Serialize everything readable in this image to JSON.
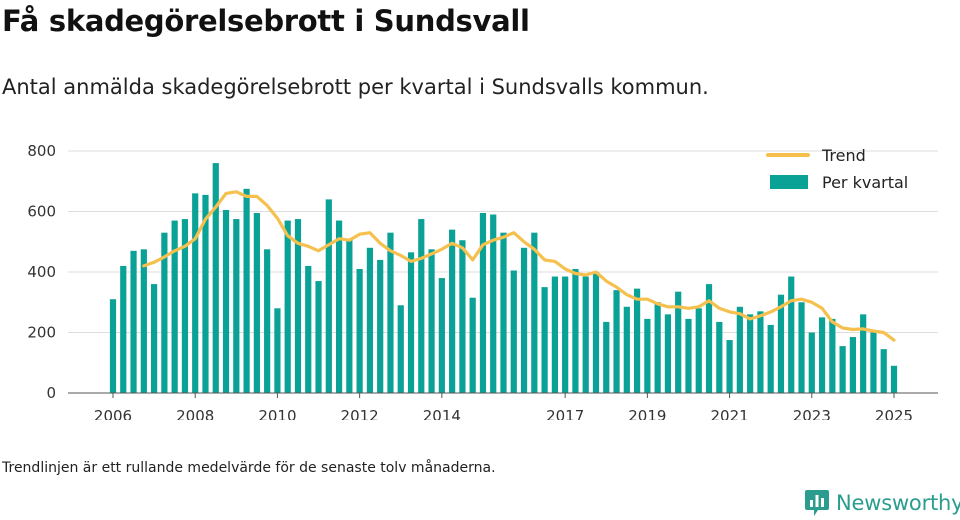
{
  "header": {
    "title": "Få skadegörelsebrott i Sundsvall",
    "subtitle": "Antal anmälda skadegörelsebrott per kvartal i Sundsvalls kommun."
  },
  "footer": {
    "note": "Trendlinjen är ett rullande medelvärde för de senaste tolv månaderna.",
    "brand": "Newsworthy"
  },
  "colors": {
    "bar": "#0aa197",
    "trend": "#f5c04e",
    "grid": "#dddddd",
    "brand": "#2a9d8f"
  },
  "chart_data": {
    "type": "bar",
    "ylim": [
      0,
      800
    ],
    "yticks": [
      0,
      200,
      400,
      600,
      800
    ],
    "xticks": [
      "2006",
      "2008",
      "2010",
      "2012",
      "2014",
      "2017",
      "2019",
      "2021",
      "2023",
      "2025"
    ],
    "grid": true,
    "legend_position": "top-right",
    "series": [
      {
        "name": "Per kvartal",
        "type": "bar",
        "values": [
          310,
          420,
          470,
          475,
          360,
          530,
          570,
          575,
          660,
          655,
          760,
          605,
          575,
          675,
          595,
          475,
          280,
          570,
          575,
          420,
          370,
          640,
          570,
          510,
          410,
          480,
          440,
          530,
          290,
          465,
          575,
          475,
          380,
          540,
          505,
          315,
          595,
          590,
          530,
          405,
          480,
          530,
          350,
          385,
          385,
          410,
          385,
          400,
          235,
          340,
          285,
          345,
          245,
          300,
          260,
          335,
          245,
          280,
          360,
          235,
          175,
          285,
          260,
          270,
          225,
          325,
          385,
          300,
          200,
          250,
          245,
          155,
          185,
          260,
          200,
          145,
          90
        ]
      },
      {
        "name": "Trend",
        "type": "line",
        "values": [
          null,
          null,
          null,
          420,
          432,
          450,
          470,
          485,
          510,
          575,
          615,
          660,
          665,
          650,
          650,
          620,
          578,
          520,
          495,
          485,
          470,
          490,
          510,
          505,
          525,
          530,
          495,
          470,
          455,
          435,
          445,
          460,
          475,
          495,
          480,
          440,
          490,
          505,
          515,
          530,
          500,
          475,
          440,
          435,
          410,
          395,
          390,
          400,
          370,
          350,
          325,
          310,
          310,
          295,
          285,
          285,
          280,
          285,
          305,
          280,
          268,
          262,
          245,
          255,
          268,
          285,
          305,
          310,
          300,
          280,
          235,
          215,
          210,
          212,
          205,
          200,
          175
        ]
      }
    ]
  }
}
